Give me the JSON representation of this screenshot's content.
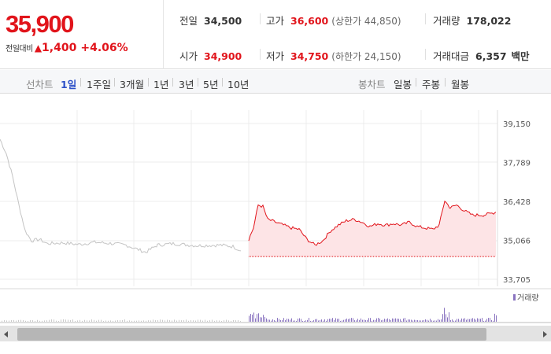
{
  "summary": {
    "price": "35,900",
    "change_label": "전일대비",
    "change_symbol": "▲",
    "change_amount": "1,400",
    "change_pct": "+4.06%",
    "prev_close": {
      "label": "전일",
      "value": "34,500"
    },
    "open": {
      "label": "시가",
      "value": "34,900"
    },
    "high": {
      "label": "고가",
      "value": "36,600",
      "limit_label": "(상한가",
      "limit_value": "44,850)"
    },
    "low": {
      "label": "저가",
      "value": "34,750",
      "limit_label": "(하한가",
      "limit_value": "24,150)"
    },
    "volume": {
      "label": "거래량",
      "value": "178,022"
    },
    "trade_value": {
      "label": "거래대금",
      "value": "6,357",
      "unit": "백만"
    }
  },
  "toolbar": {
    "line_label": "선차트",
    "line_periods": [
      "1일",
      "1주일",
      "3개월",
      "1년",
      "3년",
      "5년",
      "10년"
    ],
    "active_period": "1일",
    "candle_label": "봉차트",
    "candle_periods": [
      "일봉",
      "주봉",
      "월봉"
    ]
  },
  "chart_data": {
    "type": "line",
    "y_ticks": [
      "39,150",
      "37,789",
      "36,428",
      "35,066",
      "33,705"
    ],
    "ylim": [
      33705,
      39150
    ],
    "baseline": 34500,
    "volume_legend": "거래량",
    "colors": {
      "today": "#e1141b",
      "prev": "#c4c4c4",
      "fill": "#fde4e6"
    }
  }
}
